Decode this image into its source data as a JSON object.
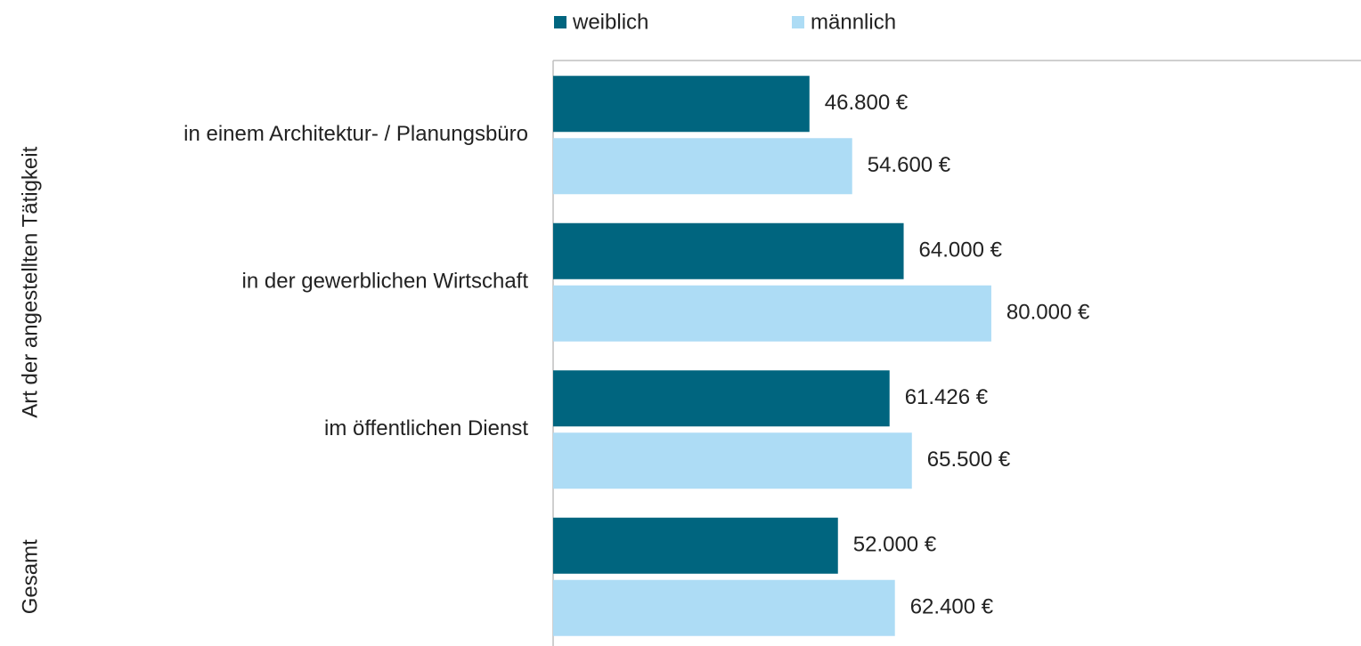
{
  "chart_data": {
    "type": "bar",
    "orientation": "horizontal",
    "groups": [
      {
        "name": "Art der angestellten Tätigkeit",
        "categories": [
          "in einem Architektur- / Planungsbüro",
          "in der gewerblichen Wirtschaft",
          "im öffentlichen Dienst"
        ]
      },
      {
        "name": "Gesamt",
        "categories": [
          null
        ]
      }
    ],
    "series": [
      {
        "name": "weiblich",
        "color": "#00657f",
        "values": [
          46800,
          64000,
          61426,
          52000
        ],
        "value_labels": [
          "46.800 €",
          "64.000 €",
          "61.426 €",
          "52.000 €"
        ]
      },
      {
        "name": "männlich",
        "color": "#addcf5",
        "values": [
          54600,
          80000,
          65500,
          62400
        ],
        "value_labels": [
          "54.600 €",
          "80.000 €",
          "65.500 €",
          "62.400 €"
        ]
      }
    ],
    "xlim": [
      0,
      147500
    ],
    "legend": "top"
  }
}
